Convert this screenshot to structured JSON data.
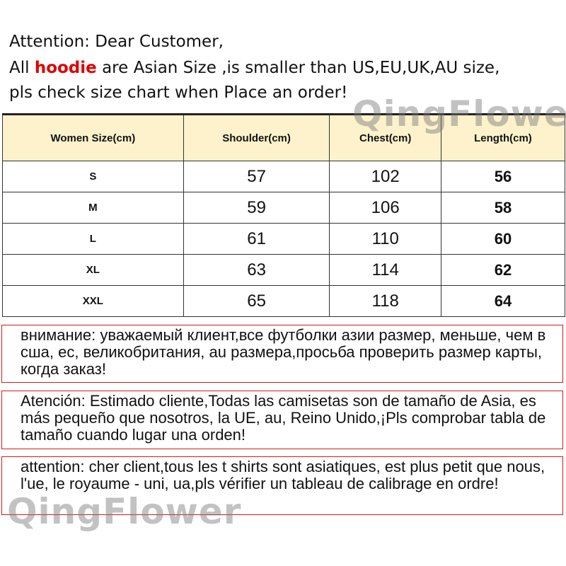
{
  "header": {
    "line1": "Attention: Dear Customer,",
    "line2_prefix": "All ",
    "line2_highlight": "hoodie",
    "line2_suffix": " are  Asian Size ,is smaller than US,EU,UK,AU size,",
    "line3": "pls check size chart when Place an order!"
  },
  "watermark": "QingFlower",
  "table": {
    "columns": [
      "Women Size(cm)",
      "Shoulder(cm)",
      "Chest(cm)",
      "Length(cm)"
    ],
    "rows": [
      [
        "S",
        "57",
        "102",
        "56"
      ],
      [
        "M",
        "59",
        "106",
        "58"
      ],
      [
        "L",
        "61",
        "110",
        "60"
      ],
      [
        "XL",
        "63",
        "114",
        "62"
      ],
      [
        "XXL",
        "65",
        "118",
        "64"
      ]
    ]
  },
  "notes": {
    "russian": "внимание: уважаемый клиент,все футболки азии размер, меньше, чем в сша, ес, великобритания, au размера,просьба проверить размер карты, когда заказ!",
    "spanish": "Atención: Estimado cliente,Todas las camisetas son de tamaño de Asia, es más pequeño que nosotros, la UE, au, Reino Unido,¡Pls comprobar tabla de tamaño cuando lugar una orden!",
    "french": "attention: cher client,tous les t shirts sont asiatiques, est plus petit que nous, l'ue, le royaume - uni, ua,pls vérifier un tableau de calibrage en ordre!"
  },
  "colors": {
    "highlight": "#e00000",
    "header_bg": "#fef2cc",
    "note_border": "#d21a1a"
  }
}
